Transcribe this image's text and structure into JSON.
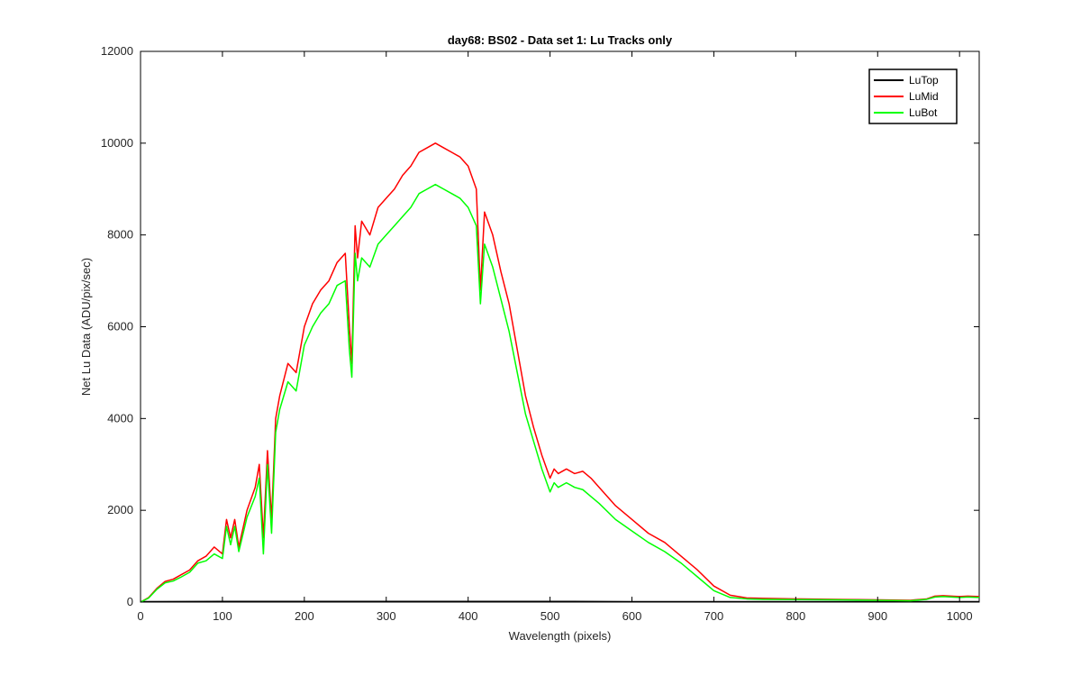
{
  "chart_data": {
    "type": "line",
    "title": "day68: BS02 - Data set 1: Lu Tracks only",
    "xlabel": "Wavelength (pixels)",
    "ylabel": "Net Lu Data (ADU/pix/sec)",
    "xlim": [
      0,
      1024
    ],
    "ylim": [
      0,
      12000
    ],
    "xticks": [
      0,
      100,
      200,
      300,
      400,
      500,
      600,
      700,
      800,
      900,
      1000
    ],
    "yticks": [
      0,
      2000,
      4000,
      6000,
      8000,
      10000,
      12000
    ],
    "grid": false,
    "legend_position": "top-right",
    "series": [
      {
        "name": "LuTop",
        "color": "#000000",
        "x": [
          0,
          100,
          200,
          300,
          400,
          500,
          600,
          700,
          800,
          900,
          1024
        ],
        "y": [
          10,
          15,
          15,
          15,
          15,
          15,
          10,
          10,
          10,
          10,
          10
        ]
      },
      {
        "name": "LuMid",
        "color": "#ff0000",
        "x": [
          0,
          10,
          20,
          30,
          40,
          50,
          60,
          70,
          80,
          90,
          100,
          105,
          110,
          115,
          120,
          130,
          140,
          145,
          150,
          155,
          160,
          165,
          170,
          180,
          190,
          200,
          210,
          220,
          230,
          240,
          250,
          255,
          258,
          262,
          265,
          270,
          280,
          290,
          300,
          310,
          320,
          330,
          340,
          350,
          360,
          370,
          380,
          390,
          400,
          410,
          415,
          420,
          430,
          440,
          450,
          460,
          470,
          480,
          490,
          500,
          505,
          510,
          520,
          530,
          540,
          550,
          560,
          580,
          600,
          620,
          640,
          660,
          680,
          700,
          720,
          740,
          760,
          800,
          850,
          900,
          940,
          960,
          970,
          980,
          1000,
          1010,
          1024
        ],
        "y": [
          0,
          100,
          300,
          450,
          500,
          600,
          700,
          900,
          1000,
          1200,
          1050,
          1800,
          1400,
          1800,
          1200,
          2000,
          2500,
          3000,
          1400,
          3300,
          1800,
          4000,
          4500,
          5200,
          5000,
          6000,
          6500,
          6800,
          7000,
          7400,
          7600,
          6000,
          5200,
          8200,
          7500,
          8300,
          8000,
          8600,
          8800,
          9000,
          9300,
          9500,
          9800,
          9900,
          10000,
          9900,
          9800,
          9700,
          9500,
          9000,
          6800,
          8500,
          8000,
          7200,
          6500,
          5500,
          4500,
          3800,
          3200,
          2700,
          2900,
          2800,
          2900,
          2800,
          2850,
          2700,
          2500,
          2100,
          1800,
          1500,
          1300,
          1000,
          700,
          350,
          150,
          90,
          80,
          70,
          60,
          50,
          40,
          70,
          130,
          140,
          120,
          130,
          120
        ]
      },
      {
        "name": "LuBot",
        "color": "#00ff00",
        "x": [
          0,
          10,
          20,
          30,
          40,
          50,
          60,
          70,
          80,
          90,
          100,
          105,
          110,
          115,
          120,
          130,
          140,
          145,
          150,
          155,
          160,
          165,
          170,
          180,
          190,
          200,
          210,
          220,
          230,
          240,
          250,
          255,
          258,
          262,
          265,
          270,
          280,
          290,
          300,
          310,
          320,
          330,
          340,
          350,
          360,
          370,
          380,
          390,
          400,
          410,
          415,
          420,
          430,
          440,
          450,
          460,
          470,
          480,
          490,
          500,
          505,
          510,
          520,
          530,
          540,
          550,
          560,
          580,
          600,
          620,
          640,
          660,
          680,
          700,
          720,
          740,
          760,
          800,
          850,
          900,
          940,
          960,
          970,
          980,
          1000,
          1010,
          1024
        ],
        "y": [
          0,
          90,
          280,
          420,
          460,
          550,
          650,
          850,
          900,
          1050,
          950,
          1650,
          1250,
          1650,
          1100,
          1850,
          2300,
          2700,
          1050,
          3000,
          1500,
          3700,
          4200,
          4800,
          4600,
          5600,
          6000,
          6300,
          6500,
          6900,
          7000,
          5500,
          4900,
          7600,
          7000,
          7500,
          7300,
          7800,
          8000,
          8200,
          8400,
          8600,
          8900,
          9000,
          9100,
          9000,
          8900,
          8800,
          8600,
          8200,
          6500,
          7800,
          7300,
          6600,
          5900,
          5000,
          4100,
          3500,
          2900,
          2400,
          2600,
          2500,
          2600,
          2500,
          2450,
          2300,
          2150,
          1800,
          1550,
          1300,
          1100,
          850,
          550,
          250,
          100,
          70,
          60,
          55,
          50,
          40,
          30,
          60,
          110,
          120,
          100,
          110,
          100
        ]
      }
    ]
  }
}
